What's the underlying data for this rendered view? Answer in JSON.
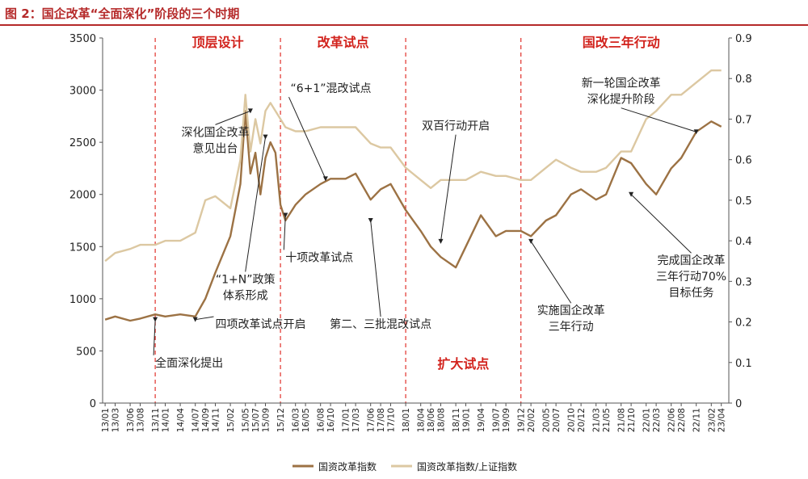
{
  "figure_title": "图 2：国企改革“全面深化”阶段的三个时期",
  "chart_data": {
    "type": "line",
    "title": "图 2：国企改革“全面深化”阶段的三个时期",
    "xlabel": "",
    "ylabel": "",
    "y2label": "",
    "x_ticks": [
      "13/01",
      "13/03",
      "13/06",
      "13/08",
      "13/11",
      "14/01",
      "14/04",
      "14/07",
      "14/09",
      "14/11",
      "15/02",
      "15/05",
      "15/07",
      "15/09",
      "15/12",
      "16/03",
      "16/05",
      "16/08",
      "16/10",
      "17/01",
      "17/03",
      "17/06",
      "17/08",
      "17/10",
      "18/01",
      "18/04",
      "18/06",
      "18/08",
      "18/11",
      "19/01",
      "19/04",
      "19/07",
      "19/09",
      "19/12",
      "20/02",
      "20/05",
      "20/07",
      "20/10",
      "20/12",
      "21/03",
      "21/05",
      "21/08",
      "21/10",
      "22/01",
      "22/03",
      "22/06",
      "22/08",
      "22/11",
      "23/02",
      "23/04"
    ],
    "ylim": [
      0,
      3500
    ],
    "y_ticks": [
      0,
      500,
      1000,
      1500,
      2000,
      2500,
      3000,
      3500
    ],
    "y2lim": [
      0,
      0.9
    ],
    "y2_ticks": [
      "0",
      "0.1",
      "0.2",
      "0.3",
      "0.4",
      "0.5",
      "0.6",
      "0.7",
      "0.8",
      "0.9"
    ],
    "grid": false,
    "legend_position": "bottom-center",
    "colors": {
      "index": "#9c7244",
      "ratio": "#dcc8a2",
      "phase_line": "#e0302a",
      "phase_label": "#d2231d",
      "annotation": "#222222"
    },
    "series": [
      {
        "name": "国资改革指数",
        "axis": "left",
        "x": [
          "13/01",
          "13/03",
          "13/06",
          "13/08",
          "13/11",
          "14/01",
          "14/04",
          "14/07",
          "14/09",
          "14/11",
          "15/02",
          "15/04",
          "15/05",
          "15/06",
          "15/07",
          "15/08",
          "15/09",
          "15/10",
          "15/11",
          "15/12",
          "16/01",
          "16/03",
          "16/05",
          "16/08",
          "16/10",
          "17/01",
          "17/03",
          "17/06",
          "17/08",
          "17/10",
          "18/01",
          "18/04",
          "18/06",
          "18/08",
          "18/11",
          "19/01",
          "19/04",
          "19/07",
          "19/09",
          "19/12",
          "20/02",
          "20/05",
          "20/07",
          "20/10",
          "20/12",
          "21/03",
          "21/05",
          "21/08",
          "21/10",
          "22/01",
          "22/03",
          "22/06",
          "22/08",
          "22/11",
          "23/02",
          "23/04"
        ],
        "values": [
          800,
          830,
          790,
          810,
          850,
          830,
          850,
          830,
          1000,
          1250,
          1600,
          2100,
          2800,
          2200,
          2400,
          2000,
          2350,
          2500,
          2400,
          1900,
          1750,
          1900,
          2000,
          2100,
          2150,
          2150,
          2200,
          1950,
          2050,
          2100,
          1850,
          1650,
          1500,
          1400,
          1300,
          1500,
          1800,
          1600,
          1650,
          1650,
          1600,
          1750,
          1800,
          2000,
          2050,
          1950,
          2000,
          2350,
          2300,
          2100,
          2000,
          2250,
          2350,
          2600,
          2700,
          2650
        ]
      },
      {
        "name": "国资改革指数/上证指数",
        "axis": "right",
        "x": [
          "13/01",
          "13/03",
          "13/06",
          "13/08",
          "13/11",
          "14/01",
          "14/04",
          "14/07",
          "14/09",
          "14/11",
          "15/02",
          "15/04",
          "15/05",
          "15/06",
          "15/07",
          "15/08",
          "15/09",
          "15/10",
          "15/11",
          "15/12",
          "16/01",
          "16/03",
          "16/05",
          "16/08",
          "16/10",
          "17/01",
          "17/03",
          "17/06",
          "17/08",
          "17/10",
          "18/01",
          "18/04",
          "18/06",
          "18/08",
          "18/11",
          "19/01",
          "19/04",
          "19/07",
          "19/09",
          "19/12",
          "20/02",
          "20/05",
          "20/07",
          "20/10",
          "20/12",
          "21/03",
          "21/05",
          "21/08",
          "21/10",
          "22/01",
          "22/03",
          "22/06",
          "22/08",
          "22/11",
          "23/02",
          "23/04"
        ],
        "values": [
          0.35,
          0.37,
          0.38,
          0.39,
          0.39,
          0.4,
          0.4,
          0.42,
          0.5,
          0.51,
          0.48,
          0.6,
          0.76,
          0.62,
          0.7,
          0.64,
          0.72,
          0.74,
          0.72,
          0.7,
          0.68,
          0.67,
          0.67,
          0.68,
          0.68,
          0.68,
          0.68,
          0.64,
          0.63,
          0.63,
          0.58,
          0.55,
          0.53,
          0.55,
          0.55,
          0.55,
          0.57,
          0.56,
          0.56,
          0.55,
          0.55,
          0.58,
          0.6,
          0.58,
          0.57,
          0.57,
          0.58,
          0.62,
          0.62,
          0.7,
          0.72,
          0.76,
          0.76,
          0.79,
          0.82,
          0.82
        ]
      }
    ],
    "phase_boundaries": [
      "13/11",
      "15/12",
      "18/01",
      "19/12"
    ],
    "phases": [
      {
        "label": "顶层设计",
        "from": "13/11",
        "to": "15/12",
        "label_position": "top"
      },
      {
        "label": "改革试点",
        "from": "15/12",
        "to": "18/01",
        "label_position": "top"
      },
      {
        "label": "扩大试点",
        "from": "18/01",
        "to": "19/12",
        "label_position": "bottom"
      },
      {
        "label": "国改三年行动",
        "from": "19/12",
        "to": "23/04",
        "label_position": "top"
      }
    ],
    "annotations": [
      {
        "lines": [
          "全面深化提出"
        ],
        "x": "13/11",
        "y": 800,
        "text_anchor": "start",
        "text_x": "13/11",
        "text_y": 350
      },
      {
        "lines": [
          "四项改革试点开启"
        ],
        "x": "14/07",
        "y": 800,
        "text_anchor": "start",
        "text_x": "14/11",
        "text_y": 720
      },
      {
        "lines": [
          "“1+N”政策",
          "体系形成"
        ],
        "x": "15/09",
        "y": 2550,
        "text_anchor": "middle",
        "text_x": "15/05",
        "text_y": 1150
      },
      {
        "lines": [
          "深化国企改革",
          "意见出台"
        ],
        "x": "15/06",
        "y": 2800,
        "text_anchor": "middle",
        "text_x": "14/11",
        "text_y": 2560
      },
      {
        "lines": [
          "十项改革试点"
        ],
        "x": "16/01",
        "y": 1800,
        "text_anchor": "start",
        "text_x": "16/01",
        "text_y": 1360
      },
      {
        "lines": [
          "“6+1”混改试点"
        ],
        "x": "16/09",
        "y": 2150,
        "text_anchor": "start",
        "text_x": "16/02",
        "text_y": 2980
      },
      {
        "lines": [
          "第二、三批混改试点"
        ],
        "x": "17/06",
        "y": 1750,
        "text_anchor": "middle",
        "text_x": "17/08",
        "text_y": 720
      },
      {
        "lines": [
          "双百行动开启"
        ],
        "x": "18/08",
        "y": 1550,
        "text_anchor": "middle",
        "text_x": "18/11",
        "text_y": 2620
      },
      {
        "lines": [
          "实施国企改革",
          "三年行动"
        ],
        "x": "20/02",
        "y": 1550,
        "text_anchor": "middle",
        "text_x": "20/10",
        "text_y": 850
      },
      {
        "lines": [
          "新一轮国企改革",
          "深化提升阶段"
        ],
        "x": "22/11",
        "y": 2600,
        "text_anchor": "middle",
        "text_x": "21/08",
        "text_y": 3030
      },
      {
        "lines": [
          "完成国企改革",
          "三年行动70%",
          "目标任务"
        ],
        "x": "21/10",
        "y": 2000,
        "text_anchor": "middle",
        "text_x": "22/10",
        "text_y": 1330
      }
    ]
  }
}
